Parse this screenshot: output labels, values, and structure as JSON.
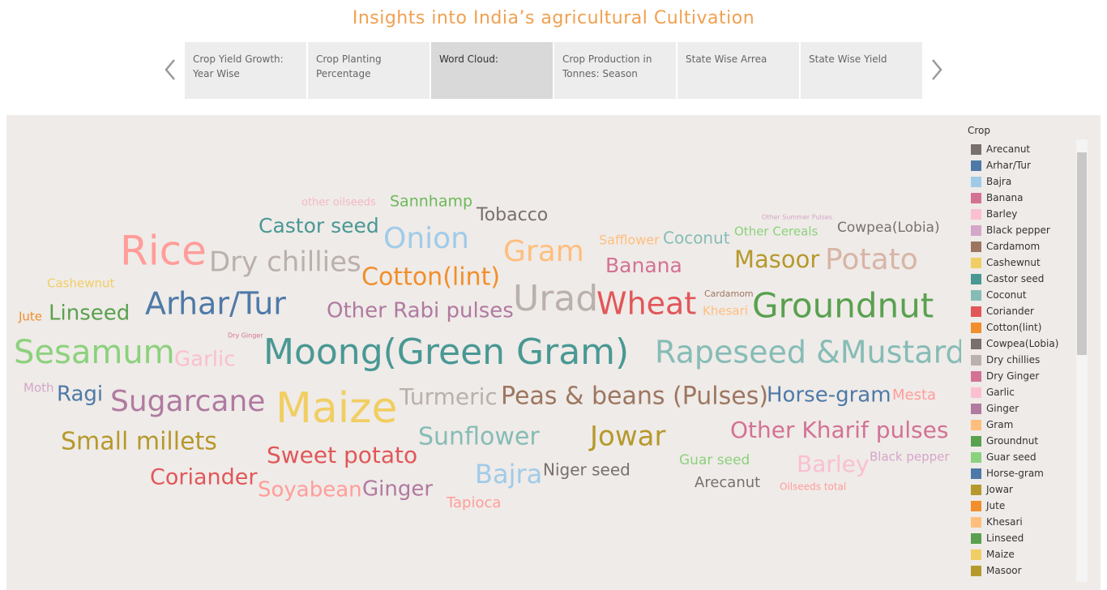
{
  "header": {
    "title": "Insights into India’s  agricultural Cultivation"
  },
  "tabs": [
    {
      "lines": [
        "Crop Yield Growth:",
        "Year Wise"
      ],
      "active": false
    },
    {
      "lines": [
        "Crop Planting",
        "Percentage"
      ],
      "active": false
    },
    {
      "lines": [
        "Word Cloud:"
      ],
      "active": true
    },
    {
      "lines": [
        "Crop Production in",
        "Tonnes: Season"
      ],
      "active": false
    },
    {
      "lines": [
        "State Wise Arrea"
      ],
      "active": false
    },
    {
      "lines": [
        "State Wise Yield"
      ],
      "active": false
    }
  ],
  "word_cloud": {
    "words": [
      {
        "text": "other oilseeds",
        "color": "#f5b8c4"
      },
      {
        "text": "Sannhamp",
        "color": "#6cb95a"
      },
      {
        "text": "Tobacco",
        "color": "#79706e"
      },
      {
        "text": "Other Summer Pulses",
        "color": "#d4a6c8"
      },
      {
        "text": "Cowpea(Lobia)",
        "color": "#79706e"
      },
      {
        "text": "Castor seed",
        "color": "#499894"
      },
      {
        "text": "Onion",
        "color": "#a0cbe8"
      },
      {
        "text": "Safflower",
        "color": "#ffbe7d"
      },
      {
        "text": "Coconut",
        "color": "#86bcb6"
      },
      {
        "text": "Other Cereals",
        "color": "#8cd17d"
      },
      {
        "text": "Rice",
        "color": "#ff9d9a"
      },
      {
        "text": "Dry chillies",
        "color": "#bab0ac"
      },
      {
        "text": "Gram",
        "color": "#ffbe7d"
      },
      {
        "text": "Banana",
        "color": "#d37295"
      },
      {
        "text": "Masoor",
        "color": "#b6992d"
      },
      {
        "text": "Potato",
        "color": "#d7b5a6"
      },
      {
        "text": "Cashewnut",
        "color": "#f1ce63"
      },
      {
        "text": "Cotton(lint)",
        "color": "#f28e2b"
      },
      {
        "text": "Cardamom",
        "color": "#9d7660"
      },
      {
        "text": "Urad",
        "color": "#bab0ac"
      },
      {
        "text": "Wheat",
        "color": "#e15759"
      },
      {
        "text": "Khesari",
        "color": "#ffbe7d"
      },
      {
        "text": "Groundnut",
        "color": "#59a14f"
      },
      {
        "text": "Jute",
        "color": "#f28e2b"
      },
      {
        "text": "Linseed",
        "color": "#59a14f"
      },
      {
        "text": "Arhar/Tur",
        "color": "#4e79a7"
      },
      {
        "text": "Other Rabi pulses",
        "color": "#b07aa1"
      },
      {
        "text": "Dry Ginger",
        "color": "#d37295"
      },
      {
        "text": "Sesamum",
        "color": "#8cd17d"
      },
      {
        "text": "Garlic",
        "color": "#fabfd2"
      },
      {
        "text": "Moong(Green Gram)",
        "color": "#499894"
      },
      {
        "text": "Rapeseed &Mustard",
        "color": "#86bcb6"
      },
      {
        "text": "Moth",
        "color": "#d4a6c8"
      },
      {
        "text": "Ragi",
        "color": "#4e79a7"
      },
      {
        "text": "Sugarcane",
        "color": "#b07aa1"
      },
      {
        "text": "Maize",
        "color": "#f1ce63"
      },
      {
        "text": "Turmeric",
        "color": "#bab0ac"
      },
      {
        "text": "Peas & beans (Pulses)",
        "color": "#9d7660"
      },
      {
        "text": "Horse-gram",
        "color": "#4e79a7"
      },
      {
        "text": "Mesta",
        "color": "#ff9d9a"
      },
      {
        "text": "Small millets",
        "color": "#b6992d"
      },
      {
        "text": "Sunflower",
        "color": "#86bcb6"
      },
      {
        "text": "Jowar",
        "color": "#b6992d"
      },
      {
        "text": "Other Kharif pulses",
        "color": "#d37295"
      },
      {
        "text": "Sweet potato",
        "color": "#e15759"
      },
      {
        "text": "Guar seed",
        "color": "#8cd17d"
      },
      {
        "text": "Barley",
        "color": "#fabfd2"
      },
      {
        "text": "Black pepper",
        "color": "#d4a6c8"
      },
      {
        "text": "Coriander",
        "color": "#e15759"
      },
      {
        "text": "Bajra",
        "color": "#a0cbe8"
      },
      {
        "text": "Niger seed",
        "color": "#79706e"
      },
      {
        "text": "Arecanut",
        "color": "#79706e"
      },
      {
        "text": "Oilseeds total",
        "color": "#ff9d9a"
      },
      {
        "text": "Soyabean",
        "color": "#ff9d9a"
      },
      {
        "text": "Ginger",
        "color": "#b07aa1"
      },
      {
        "text": "Tapioca",
        "color": "#ff9d9a"
      }
    ]
  },
  "legend": {
    "title": "Crop",
    "items": [
      {
        "name": "Arecanut",
        "color": "#79706e"
      },
      {
        "name": "Arhar/Tur",
        "color": "#4e79a7"
      },
      {
        "name": "Bajra",
        "color": "#a0cbe8"
      },
      {
        "name": "Banana",
        "color": "#d37295"
      },
      {
        "name": "Barley",
        "color": "#fabfd2"
      },
      {
        "name": "Black pepper",
        "color": "#d4a6c8"
      },
      {
        "name": "Cardamom",
        "color": "#9d7660"
      },
      {
        "name": "Cashewnut",
        "color": "#f1ce63"
      },
      {
        "name": "Castor seed",
        "color": "#499894"
      },
      {
        "name": "Coconut",
        "color": "#86bcb6"
      },
      {
        "name": "Coriander",
        "color": "#e15759"
      },
      {
        "name": "Cotton(lint)",
        "color": "#f28e2b"
      },
      {
        "name": "Cowpea(Lobia)",
        "color": "#79706e"
      },
      {
        "name": "Dry chillies",
        "color": "#bab0ac"
      },
      {
        "name": "Dry Ginger",
        "color": "#d37295"
      },
      {
        "name": "Garlic",
        "color": "#fabfd2"
      },
      {
        "name": "Ginger",
        "color": "#b07aa1"
      },
      {
        "name": "Gram",
        "color": "#ffbe7d"
      },
      {
        "name": "Groundnut",
        "color": "#59a14f"
      },
      {
        "name": "Guar seed",
        "color": "#8cd17d"
      },
      {
        "name": "Horse-gram",
        "color": "#4e79a7"
      },
      {
        "name": "Jowar",
        "color": "#b6992d"
      },
      {
        "name": "Jute",
        "color": "#f28e2b"
      },
      {
        "name": "Khesari",
        "color": "#ffbe7d"
      },
      {
        "name": "Linseed",
        "color": "#59a14f"
      },
      {
        "name": "Maize",
        "color": "#f1ce63"
      },
      {
        "name": "Masoor",
        "color": "#b6992d"
      }
    ]
  }
}
